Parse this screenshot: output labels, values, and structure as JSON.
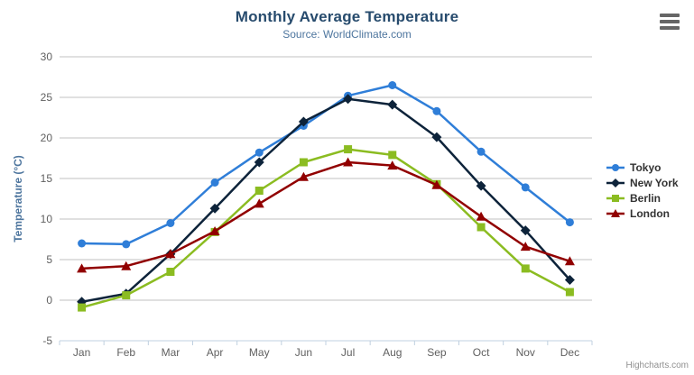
{
  "chart_data": {
    "type": "line",
    "title": "Monthly Average Temperature",
    "subtitle": "Source: WorldClimate.com",
    "xlabel": "",
    "ylabel": "Temperature (°C)",
    "categories": [
      "Jan",
      "Feb",
      "Mar",
      "Apr",
      "May",
      "Jun",
      "Jul",
      "Aug",
      "Sep",
      "Oct",
      "Nov",
      "Dec"
    ],
    "ylim": [
      -5,
      30
    ],
    "y_tick_interval": 5,
    "grid": true,
    "legend_position": "right-middle",
    "series": [
      {
        "name": "Tokyo",
        "color": "#2f7ed8",
        "marker": "circle",
        "values": [
          7.0,
          6.9,
          9.5,
          14.5,
          18.2,
          21.5,
          25.2,
          26.5,
          23.3,
          18.3,
          13.9,
          9.6
        ]
      },
      {
        "name": "New York",
        "color": "#0d233a",
        "marker": "diamond",
        "values": [
          -0.2,
          0.8,
          5.7,
          11.3,
          17.0,
          22.0,
          24.8,
          24.1,
          20.1,
          14.1,
          8.6,
          2.5
        ]
      },
      {
        "name": "Berlin",
        "color": "#8bbc21",
        "marker": "square",
        "values": [
          -0.9,
          0.6,
          3.5,
          8.4,
          13.5,
          17.0,
          18.6,
          17.9,
          14.3,
          9.0,
          3.9,
          1.0
        ]
      },
      {
        "name": "London",
        "color": "#910000",
        "marker": "triangle",
        "values": [
          3.9,
          4.2,
          5.7,
          8.5,
          11.9,
          15.2,
          17.0,
          16.6,
          14.2,
          10.3,
          6.6,
          4.8
        ]
      }
    ],
    "credits": "Highcharts.com"
  },
  "icons": {
    "context_menu": "hamburger-icon"
  },
  "colors": {
    "background": "#ffffff",
    "title": "#274b6d",
    "subtitle": "#4d759e",
    "axis_title": "#4d759e",
    "axis_labels": "#606060",
    "gridline": "#c0c0c0",
    "axis_line": "#c0d0e0",
    "legend_text": "#333333",
    "credits": "#909090",
    "menu_icon": "#666666"
  }
}
